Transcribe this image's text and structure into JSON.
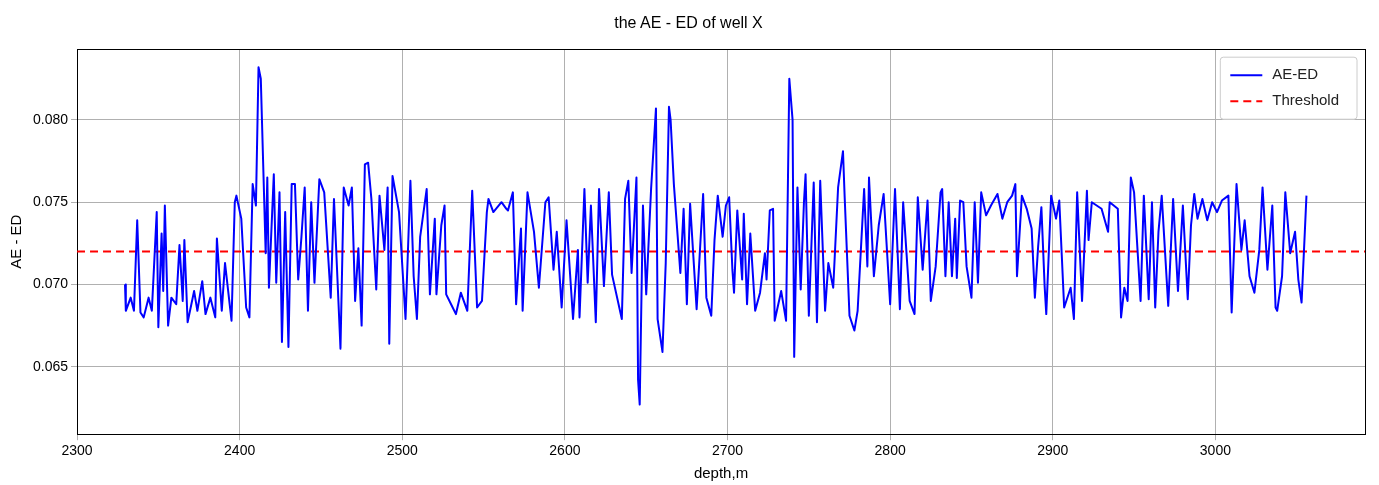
{
  "chart_data": {
    "type": "line",
    "title": "the AE - ED of well X",
    "xlabel": "depth,m",
    "ylabel": "AE - ED",
    "xlim": [
      2300,
      3092
    ],
    "xticks": [
      2300,
      2400,
      2500,
      2600,
      2700,
      2800,
      2900,
      3000
    ],
    "ylim": [
      0.0609,
      0.0843
    ],
    "yticks": [
      {
        "value": 0.065,
        "label": "0.065"
      },
      {
        "value": 0.07,
        "label": "0.070"
      },
      {
        "value": 0.075,
        "label": "0.075"
      },
      {
        "value": 0.08,
        "label": "0.080"
      }
    ],
    "grid": true,
    "legend": "top right",
    "line_style": "solid",
    "marker": "none",
    "ref_lines": [
      {
        "axis": "y",
        "value": 0.072,
        "label": "Threshold",
        "color": "#ff0000",
        "line_style": "dashed"
      }
    ],
    "series": [
      {
        "name": "AE-ED",
        "color": "#0000ff",
        "x": [
          2329.5,
          2330,
          2333,
          2335,
          2337,
          2339,
          2341,
          2344,
          2346,
          2349,
          2350,
          2352,
          2353,
          2354,
          2356,
          2358,
          2361,
          2363,
          2365,
          2366,
          2368,
          2372,
          2374,
          2377,
          2379,
          2382,
          2385,
          2386,
          2389,
          2391,
          2395,
          2397,
          2398,
          2401,
          2404,
          2406,
          2408,
          2410,
          2411.6,
          2413,
          2416,
          2417,
          2418,
          2420,
          2421,
          2422.5,
          2424.5,
          2426,
          2428,
          2430,
          2432,
          2434,
          2436,
          2438,
          2440,
          2442,
          2444,
          2446,
          2449,
          2452,
          2456,
          2458,
          2462,
          2464,
          2467,
          2469,
          2471,
          2473,
          2475,
          2477,
          2479,
          2481,
          2484,
          2486,
          2489,
          2491,
          2492,
          2494,
          2498,
          2502,
          2505,
          2507,
          2509,
          2511,
          2515,
          2517,
          2520,
          2521,
          2524,
          2526,
          2527,
          2530,
          2533,
          2536,
          2540,
          2543,
          2546,
          2549,
          2552,
          2553,
          2556,
          2561,
          2564,
          2565,
          2568,
          2570,
          2573,
          2574,
          2577,
          2581,
          2584,
          2588,
          2590,
          2593,
          2595,
          2598,
          2601,
          2605,
          2608,
          2609,
          2612,
          2614,
          2616,
          2619,
          2621,
          2624,
          2627,
          2629,
          2635,
          2637,
          2639,
          2641,
          2644,
          2645,
          2646,
          2648,
          2650,
          2653,
          2656,
          2657,
          2660,
          2662,
          2664,
          2665,
          2667,
          2671,
          2673,
          2675,
          2677,
          2681,
          2685,
          2687,
          2690,
          2692,
          2694,
          2697,
          2699,
          2701,
          2703,
          2704,
          2706,
          2709,
          2710,
          2712,
          2714,
          2717,
          2720,
          2723,
          2724,
          2726,
          2728,
          2729,
          2733,
          2736,
          2738,
          2740,
          2741,
          2743,
          2745,
          2747,
          2748,
          2750,
          2753,
          2755,
          2757,
          2760,
          2762,
          2765,
          2768,
          2771,
          2772,
          2775,
          2778,
          2780,
          2784,
          2786,
          2787,
          2790,
          2793,
          2796,
          2800,
          2803,
          2806,
          2808,
          2812,
          2815,
          2817,
          2820,
          2823,
          2825,
          2828,
          2831,
          2832,
          2834,
          2836,
          2838,
          2840,
          2841,
          2843,
          2845,
          2847,
          2850,
          2852,
          2854,
          2856,
          2859,
          2862,
          2866,
          2869,
          2872,
          2875,
          2877,
          2878,
          2881,
          2884,
          2887,
          2889,
          2891,
          2893,
          2895,
          2896,
          2899,
          2902,
          2904,
          2907,
          2911,
          2913,
          2915,
          2918,
          2921,
          2922,
          2924,
          2930,
          2934,
          2935,
          2940,
          2942,
          2944,
          2946,
          2948,
          2950,
          2954,
          2956,
          2959,
          2961,
          2963,
          2965,
          2967,
          2971,
          2974,
          2977,
          2980,
          2983,
          2985,
          2987,
          2989,
          2992,
          2995,
          2998,
          3001,
          3004,
          3008,
          3010,
          3013,
          3016,
          3018,
          3021,
          3024,
          3027,
          3029,
          3032,
          3035,
          3037,
          3038,
          3041,
          3043,
          3046,
          3049,
          3051,
          3053,
          3055,
          3056
        ],
        "values": [
          0.07,
          0.0684,
          0.0692,
          0.0684,
          0.0739,
          0.0683,
          0.068,
          0.0692,
          0.0684,
          0.0744,
          0.0674,
          0.0731,
          0.0696,
          0.0748,
          0.0675,
          0.0692,
          0.0688,
          0.0724,
          0.069,
          0.0727,
          0.0677,
          0.0696,
          0.0684,
          0.0702,
          0.0682,
          0.0692,
          0.068,
          0.0728,
          0.0684,
          0.0713,
          0.0678,
          0.075,
          0.0754,
          0.074,
          0.0686,
          0.068,
          0.0761,
          0.0748,
          0.0832,
          0.0825,
          0.0719,
          0.0765,
          0.0698,
          0.0744,
          0.0767,
          0.0701,
          0.0756,
          0.0665,
          0.0744,
          0.0662,
          0.0761,
          0.0761,
          0.0703,
          0.0729,
          0.0759,
          0.0684,
          0.075,
          0.0701,
          0.0764,
          0.0756,
          0.0692,
          0.0752,
          0.0661,
          0.0759,
          0.0748,
          0.0759,
          0.069,
          0.0722,
          0.0675,
          0.0773,
          0.0774,
          0.0752,
          0.0697,
          0.0754,
          0.0721,
          0.0759,
          0.0664,
          0.0766,
          0.0744,
          0.0679,
          0.0763,
          0.0705,
          0.0679,
          0.0729,
          0.0758,
          0.0694,
          0.074,
          0.0694,
          0.0736,
          0.0748,
          0.0694,
          0.0688,
          0.0682,
          0.0695,
          0.0684,
          0.0757,
          0.0686,
          0.069,
          0.0744,
          0.0752,
          0.0744,
          0.075,
          0.0746,
          0.0745,
          0.0756,
          0.0688,
          0.0734,
          0.0684,
          0.0756,
          0.0732,
          0.0698,
          0.075,
          0.0753,
          0.0709,
          0.0732,
          0.0686,
          0.0739,
          0.0679,
          0.0721,
          0.068,
          0.0758,
          0.0701,
          0.0748,
          0.0677,
          0.0758,
          0.0699,
          0.0756,
          0.0706,
          0.0679,
          0.0752,
          0.0763,
          0.0707,
          0.0765,
          0.0642,
          0.0627,
          0.0748,
          0.0694,
          0.0758,
          0.0807,
          0.0679,
          0.0659,
          0.0713,
          0.0808,
          0.08,
          0.0761,
          0.0707,
          0.0746,
          0.0688,
          0.0749,
          0.0685,
          0.0755,
          0.0692,
          0.0681,
          0.0727,
          0.0754,
          0.0729,
          0.0748,
          0.0753,
          0.0709,
          0.0695,
          0.0745,
          0.0703,
          0.0743,
          0.0688,
          0.0731,
          0.0684,
          0.0695,
          0.0719,
          0.0703,
          0.0745,
          0.0746,
          0.0678,
          0.0696,
          0.0678,
          0.0825,
          0.08,
          0.0656,
          0.0759,
          0.0697,
          0.075,
          0.0767,
          0.0681,
          0.0762,
          0.0677,
          0.0763,
          0.0684,
          0.0713,
          0.0698,
          0.0759,
          0.0781,
          0.0754,
          0.0681,
          0.0672,
          0.0684,
          0.0758,
          0.0711,
          0.0765,
          0.0705,
          0.0736,
          0.0755,
          0.0688,
          0.0758,
          0.0685,
          0.075,
          0.069,
          0.0682,
          0.0753,
          0.0709,
          0.0751,
          0.069,
          0.0711,
          0.0756,
          0.0758,
          0.0705,
          0.075,
          0.0705,
          0.074,
          0.0704,
          0.0751,
          0.075,
          0.0711,
          0.0692,
          0.075,
          0.0701,
          0.0756,
          0.0742,
          0.0748,
          0.0755,
          0.074,
          0.075,
          0.0754,
          0.0761,
          0.0705,
          0.0754,
          0.0746,
          0.0734,
          0.0692,
          0.0723,
          0.0747,
          0.0699,
          0.0682,
          0.0754,
          0.074,
          0.0751,
          0.0686,
          0.0698,
          0.0679,
          0.0756,
          0.069,
          0.0757,
          0.0727,
          0.075,
          0.0746,
          0.0732,
          0.075,
          0.0746,
          0.068,
          0.0698,
          0.069,
          0.0765,
          0.0756,
          0.069,
          0.0754,
          0.0691,
          0.075,
          0.0686,
          0.0732,
          0.0754,
          0.0687,
          0.0752,
          0.0696,
          0.0748,
          0.0691,
          0.0736,
          0.0755,
          0.074,
          0.0752,
          0.0739,
          0.075,
          0.0744,
          0.0751,
          0.0754,
          0.0683,
          0.0761,
          0.0721,
          0.0739,
          0.0705,
          0.0695,
          0.0721,
          0.0759,
          0.0709,
          0.0748,
          0.0686,
          0.0684,
          0.0705,
          0.0756,
          0.0719,
          0.0732,
          0.0703,
          0.0689,
          0.0732,
          0.0754
        ]
      }
    ]
  }
}
